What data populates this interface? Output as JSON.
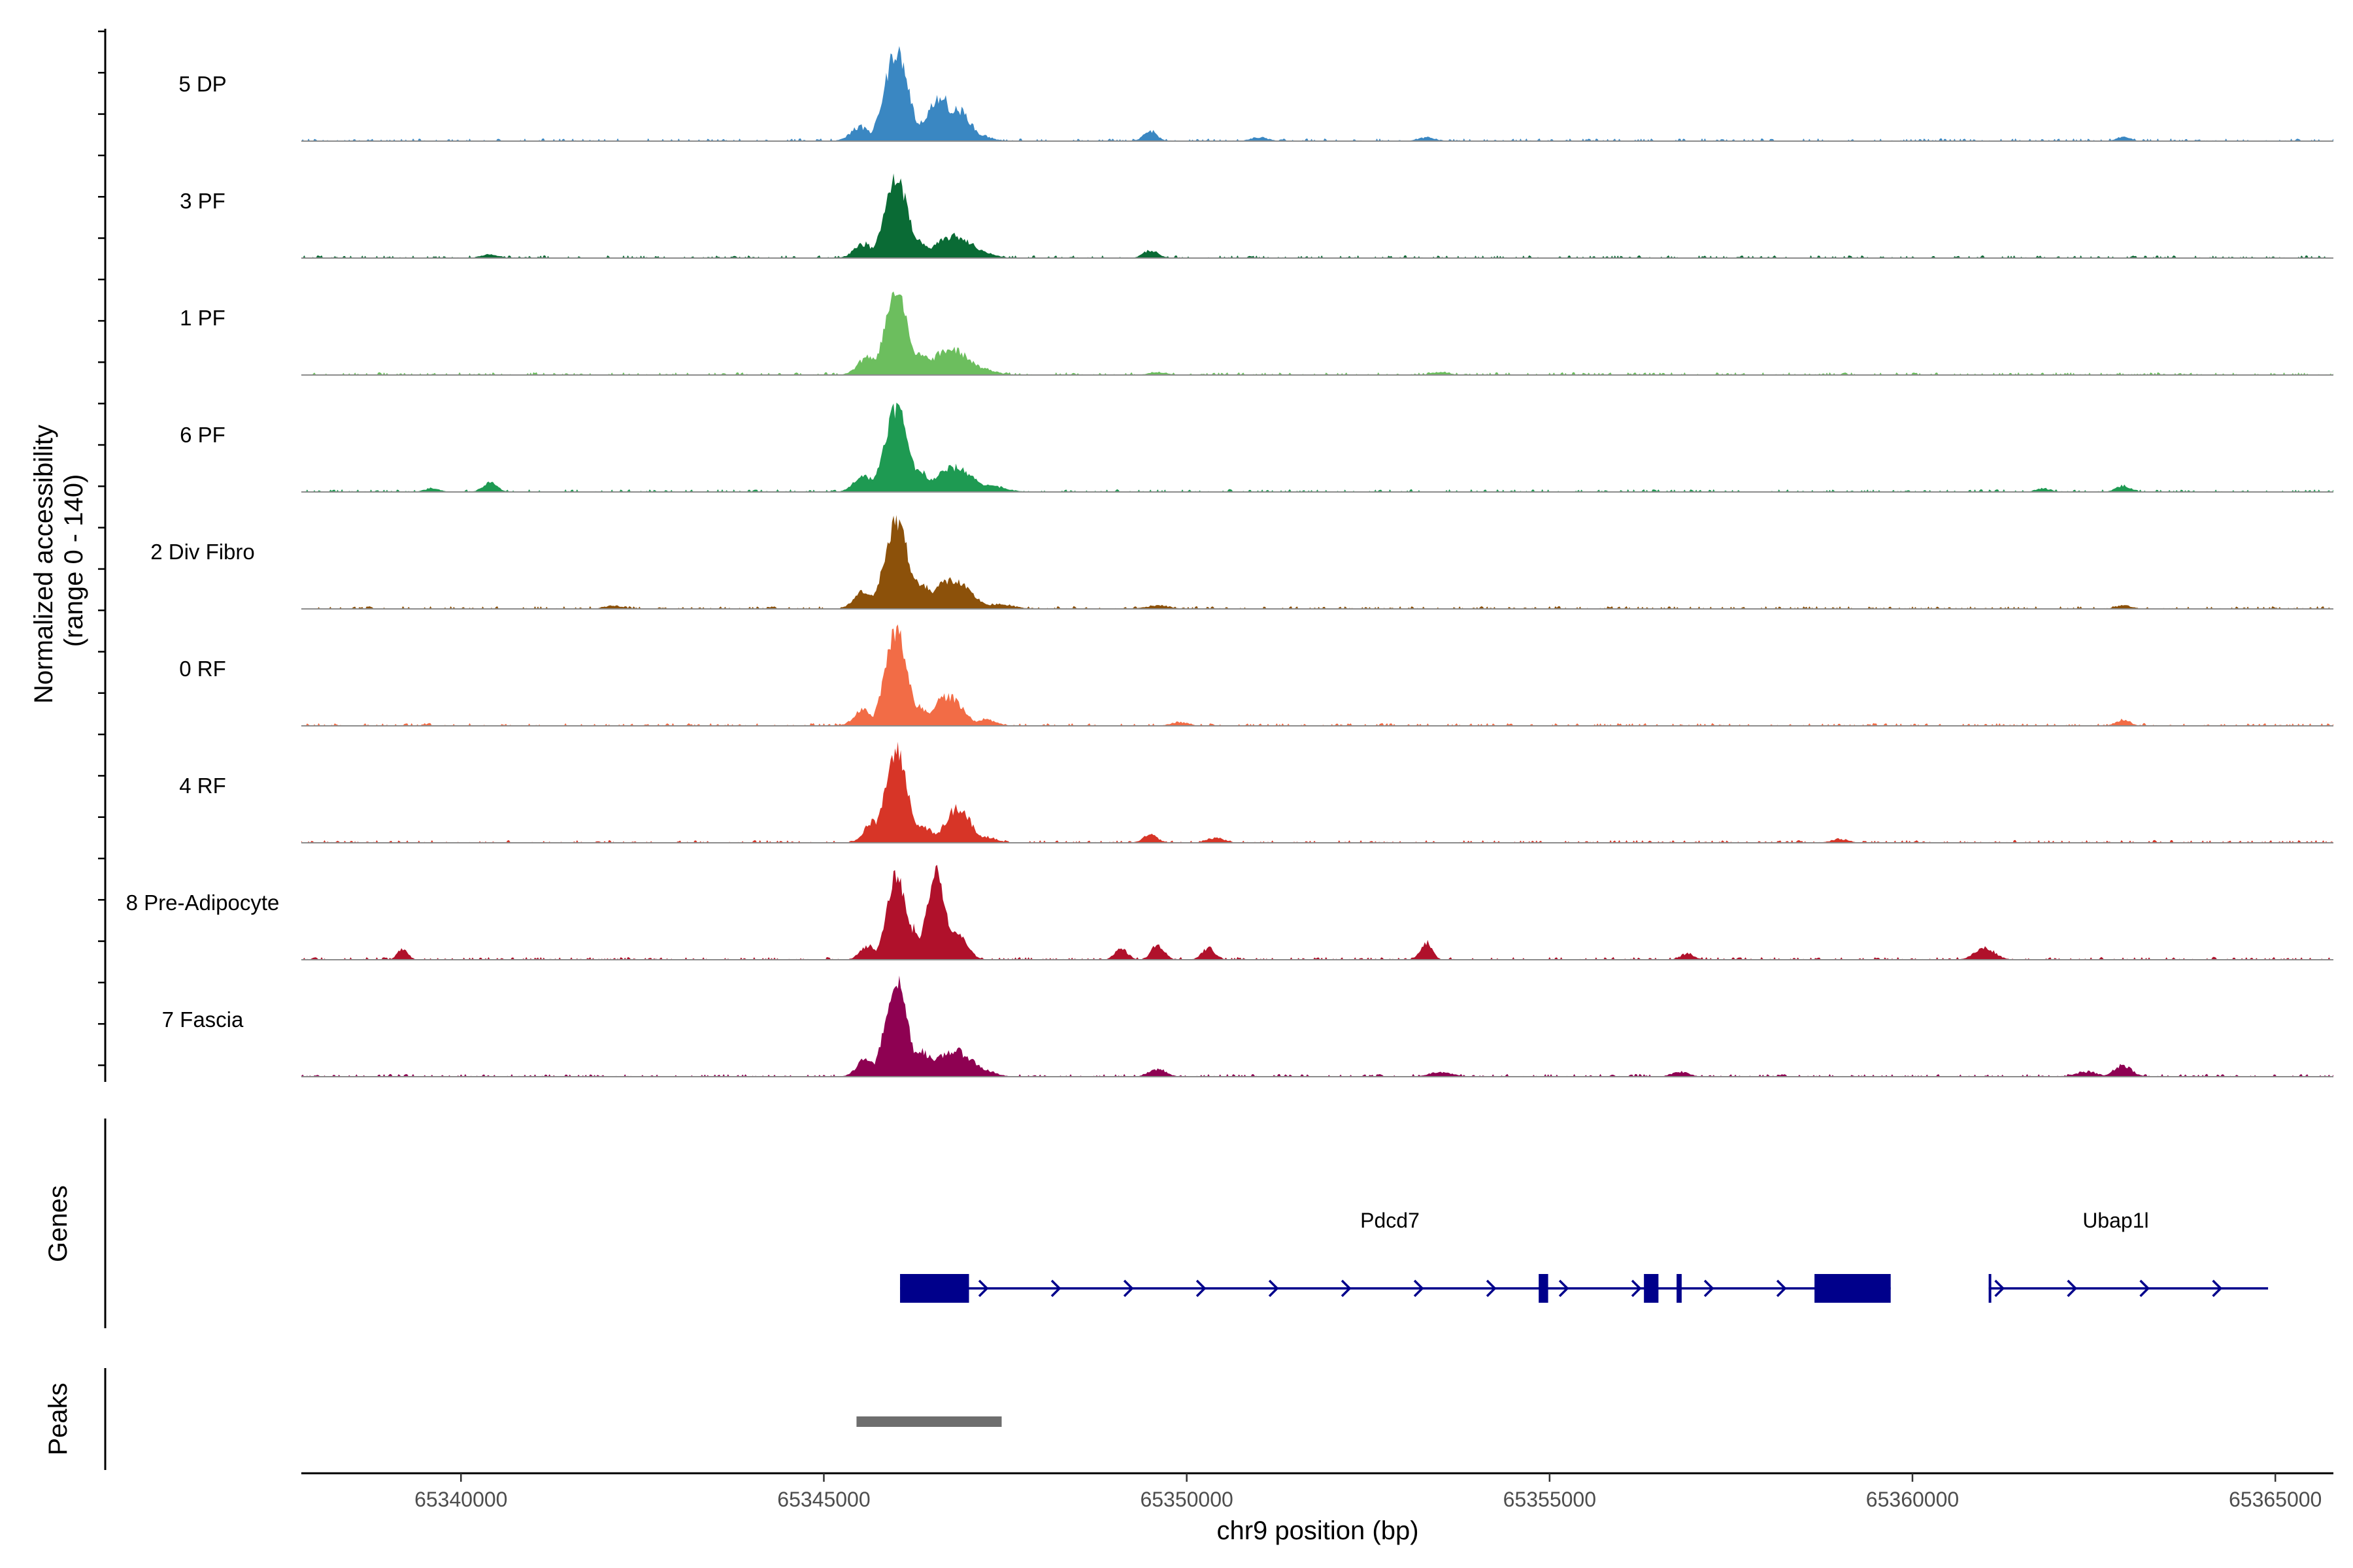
{
  "chart_data": {
    "type": "area",
    "title": "",
    "ylabel_lines": [
      "Normalized accessibility",
      "(range 0 - 140)"
    ],
    "ylim": [
      0,
      140
    ],
    "xlabel": "chr9 position (bp)",
    "xlim": [
      65337800,
      65365800
    ],
    "xticks": [
      {
        "value": 65340000,
        "label": "65340000"
      },
      {
        "value": 65345000,
        "label": "65345000"
      },
      {
        "value": 65350000,
        "label": "65350000"
      },
      {
        "value": 65355000,
        "label": "65355000"
      },
      {
        "value": 65360000,
        "label": "65360000"
      },
      {
        "value": 65365000,
        "label": "65365000"
      }
    ],
    "series": [
      {
        "name": "5 DP",
        "color": "#3a87c2",
        "peaks": [
          [
            65346000,
            128,
            160,
            0.45
          ],
          [
            65346250,
            30,
            200,
            0.6
          ],
          [
            65346600,
            64,
            180,
            0.55
          ],
          [
            65346850,
            46,
            170,
            0.6
          ],
          [
            65345500,
            22,
            130,
            0.7
          ],
          [
            65347100,
            12,
            160,
            0.8
          ],
          [
            65349500,
            16,
            90,
            0.7
          ],
          [
            65351000,
            6,
            120,
            0.8
          ],
          [
            65353300,
            6,
            120,
            0.8
          ],
          [
            65362900,
            6,
            100,
            0.8
          ]
        ]
      },
      {
        "name": "3 PF",
        "color": "#0a6b35",
        "peaks": [
          [
            65346000,
            112,
            160,
            0.45
          ],
          [
            65346200,
            30,
            200,
            0.6
          ],
          [
            65346800,
            32,
            260,
            0.6
          ],
          [
            65345550,
            22,
            130,
            0.7
          ],
          [
            65347200,
            8,
            160,
            0.8
          ],
          [
            65349500,
            12,
            100,
            0.7
          ],
          [
            65340400,
            6,
            120,
            0.8
          ]
        ]
      },
      {
        "name": "1 PF",
        "color": "#6cbe5e",
        "peaks": [
          [
            65346000,
            124,
            150,
            0.45
          ],
          [
            65346250,
            36,
            200,
            0.6
          ],
          [
            65346750,
            38,
            260,
            0.6
          ],
          [
            65345600,
            28,
            130,
            0.7
          ],
          [
            65347200,
            10,
            160,
            0.8
          ],
          [
            65349600,
            5,
            120,
            0.8
          ],
          [
            65353500,
            5,
            120,
            0.8
          ]
        ]
      },
      {
        "name": "6 PF",
        "color": "#1e9a52",
        "peaks": [
          [
            65346000,
            120,
            160,
            0.45
          ],
          [
            65346250,
            34,
            200,
            0.6
          ],
          [
            65346800,
            36,
            260,
            0.6
          ],
          [
            65345550,
            26,
            130,
            0.7
          ],
          [
            65347300,
            10,
            200,
            0.8
          ],
          [
            65340400,
            14,
            100,
            0.7
          ],
          [
            65339600,
            6,
            100,
            0.8
          ],
          [
            65362900,
            10,
            100,
            0.8
          ],
          [
            65361800,
            6,
            100,
            0.8
          ]
        ]
      },
      {
        "name": "2 Div Fibro",
        "color": "#8c510a",
        "peaks": [
          [
            65346000,
            124,
            160,
            0.45
          ],
          [
            65346300,
            40,
            200,
            0.6
          ],
          [
            65346750,
            42,
            260,
            0.6
          ],
          [
            65345550,
            26,
            130,
            0.7
          ],
          [
            65347400,
            8,
            200,
            0.8
          ],
          [
            65349600,
            6,
            150,
            0.8
          ],
          [
            65342100,
            5,
            120,
            0.8
          ],
          [
            65362900,
            6,
            100,
            0.8
          ]
        ]
      },
      {
        "name": "0 RF",
        "color": "#f26c46",
        "peaks": [
          [
            65346000,
            136,
            150,
            0.45
          ],
          [
            65346250,
            30,
            200,
            0.6
          ],
          [
            65346700,
            44,
            200,
            0.6
          ],
          [
            65345550,
            24,
            130,
            0.7
          ],
          [
            65347200,
            10,
            160,
            0.8
          ],
          [
            65362900,
            10,
            100,
            0.8
          ],
          [
            65349900,
            6,
            120,
            0.8
          ]
        ]
      },
      {
        "name": "4 RF",
        "color": "#d73527",
        "peaks": [
          [
            65346000,
            130,
            150,
            0.45
          ],
          [
            65346300,
            26,
            200,
            0.6
          ],
          [
            65346850,
            52,
            170,
            0.6
          ],
          [
            65345700,
            34,
            130,
            0.7
          ],
          [
            65347200,
            10,
            160,
            0.8
          ],
          [
            65349500,
            12,
            100,
            0.7
          ],
          [
            65350400,
            8,
            120,
            0.8
          ],
          [
            65359000,
            6,
            120,
            0.8
          ]
        ]
      },
      {
        "name": "8 Pre-Adipocyte",
        "color": "#b0112b",
        "peaks": [
          [
            65346000,
            120,
            130,
            0.4
          ],
          [
            65346550,
            120,
            130,
            0.4
          ],
          [
            65346200,
            48,
            150,
            0.6
          ],
          [
            65346800,
            42,
            150,
            0.6
          ],
          [
            65345600,
            22,
            100,
            0.7
          ],
          [
            65353300,
            26,
            80,
            0.6
          ],
          [
            65361000,
            18,
            140,
            0.7
          ],
          [
            65339200,
            18,
            70,
            0.7
          ],
          [
            65349100,
            16,
            90,
            0.7
          ],
          [
            65349600,
            22,
            90,
            0.7
          ],
          [
            65350300,
            18,
            90,
            0.7
          ],
          [
            65356900,
            10,
            90,
            0.8
          ]
        ]
      },
      {
        "name": "7 Fascia",
        "color": "#8e0152",
        "peaks": [
          [
            65346000,
            136,
            150,
            0.45
          ],
          [
            65346300,
            40,
            200,
            0.6
          ],
          [
            65346800,
            38,
            260,
            0.6
          ],
          [
            65345600,
            28,
            130,
            0.7
          ],
          [
            65347200,
            10,
            160,
            0.8
          ],
          [
            65362900,
            18,
            120,
            0.7
          ],
          [
            65362400,
            8,
            150,
            0.8
          ],
          [
            65349600,
            12,
            120,
            0.8
          ],
          [
            65353500,
            8,
            150,
            0.8
          ],
          [
            65356800,
            8,
            120,
            0.8
          ]
        ]
      }
    ],
    "genes_panel": {
      "title": "Genes",
      "color": "#00008b",
      "genes": [
        {
          "name": "Pdcd7",
          "start": 65346050,
          "end": 65359700,
          "label_pos": 65352800,
          "exons": [
            [
              65346050,
              65347000
            ],
            [
              65354850,
              65354980
            ],
            [
              65356300,
              65356500
            ],
            [
              65356750,
              65356820
            ],
            [
              65358650,
              65359700
            ]
          ]
        },
        {
          "name": "Ubap1l",
          "start": 65361050,
          "end": 65364900,
          "label_pos": 65362800,
          "exons": [
            [
              65361050,
              65361080
            ]
          ]
        }
      ]
    },
    "peaks_panel": {
      "title": "Peaks",
      "color": "#6e6e6e",
      "regions": [
        [
          65345450,
          65347450
        ]
      ]
    }
  }
}
